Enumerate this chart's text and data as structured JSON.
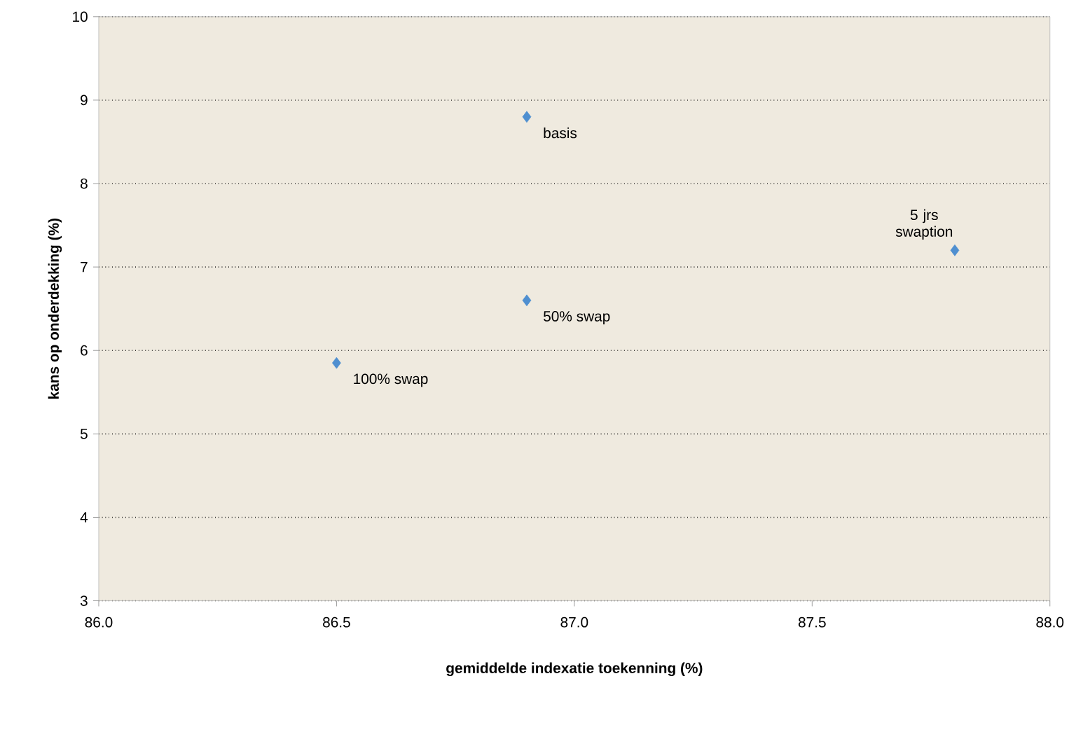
{
  "chart_data": {
    "type": "scatter",
    "xlabel": "gemiddelde indexatie toekenning (%)",
    "ylabel": "kans op onderdekking (%)",
    "x": [
      86.9,
      86.9,
      86.5,
      87.8
    ],
    "values": [
      8.8,
      6.6,
      5.85,
      7.2
    ],
    "color": "#4f8fd0",
    "marker": "diamond",
    "grid": "y",
    "xlim": [
      86,
      88
    ],
    "ylim": [
      3,
      10
    ],
    "xticks": [
      {
        "value": 86,
        "label": "86.0"
      },
      {
        "value": 86.5,
        "label": "86.5"
      },
      {
        "value": 87,
        "label": "87.0"
      },
      {
        "value": 87.5,
        "label": "87.5"
      },
      {
        "value": 88,
        "label": "88.0"
      }
    ],
    "yticks": [
      3,
      4,
      5,
      6,
      7,
      8,
      9,
      10
    ],
    "annotations": [
      {
        "text": "basis",
        "x": 86.9,
        "y": 8.8
      },
      {
        "text": "50% swap",
        "x": 86.9,
        "y": 6.6
      },
      {
        "text": "100% swap",
        "x": 86.5,
        "y": 5.85
      },
      {
        "text": "5 jrs swaption",
        "x": 87.8,
        "y": 7.2
      }
    ]
  }
}
